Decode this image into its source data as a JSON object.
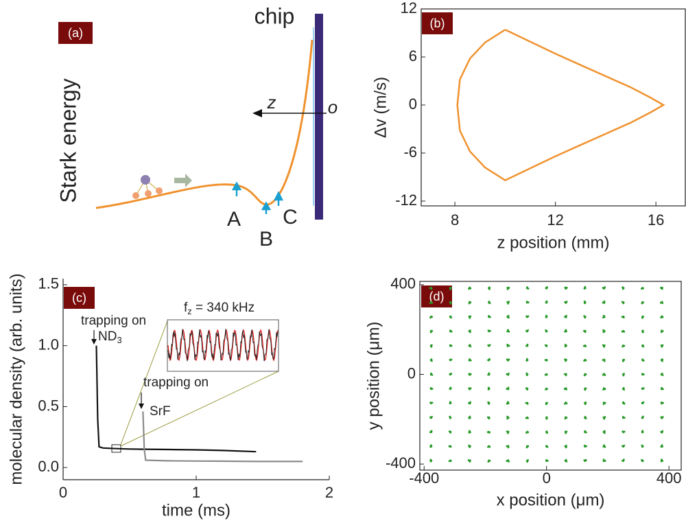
{
  "panel_a": {
    "label": "(a)",
    "chip": "chip",
    "y_label": "Stark energy",
    "axis": "z",
    "origin": "o",
    "points": [
      "A",
      "B",
      "C"
    ]
  },
  "chart_data": [
    {
      "type": "line",
      "label": "(b)",
      "x_label": "z position (mm)",
      "y_label": "Δv (m/s)",
      "xlim": [
        6.66,
        17.17
      ],
      "ylim": [
        -12.6,
        12
      ],
      "xticks": [
        8,
        12,
        16
      ],
      "yticks": [
        -12,
        -6,
        0,
        6,
        12
      ],
      "x": [
        10,
        11,
        12,
        13,
        14,
        15,
        15.8,
        16.3,
        15.8,
        15,
        14,
        13,
        12,
        11,
        10,
        9.2,
        8.6,
        8.2,
        8.1,
        8.2,
        8.6,
        9.2,
        10
      ],
      "series": [
        {
          "color": "#f0922e",
          "values": [
            9.4,
            7.9,
            6.4,
            5.0,
            3.6,
            2.2,
            0.9,
            0,
            -0.9,
            -2.2,
            -3.6,
            -5.0,
            -6.4,
            -7.9,
            -9.4,
            -7.8,
            -5.8,
            -3.2,
            0,
            3.2,
            5.8,
            7.8,
            9.4
          ]
        }
      ]
    },
    {
      "type": "line",
      "label": "(c)",
      "x_label": "time (ms)",
      "y_label": "molecular density (arb. units)",
      "xlim": [
        0,
        2
      ],
      "ylim": [
        -0.1,
        1.55
      ],
      "xticks": [
        0,
        1,
        2
      ],
      "yticks": [
        {
          "value": 0,
          "label": "0.0"
        },
        {
          "value": 0.5,
          "label": "0.5"
        },
        {
          "value": 1,
          "label": "1.0"
        },
        {
          "value": 1.5,
          "label": "1.5"
        }
      ],
      "x": [
        0.25,
        0.26,
        0.27,
        0.3,
        0.4,
        0.5,
        0.6,
        0.61,
        0.62,
        0.8,
        1.0,
        1.2,
        1.45,
        1.6,
        1.8
      ],
      "series": [
        {
          "color": "#111111",
          "values": [
            1.0,
            0.4,
            0.17,
            0.16,
            0.155,
            0.152,
            0.15,
            0.15,
            0.15,
            0.148,
            0.145,
            0.14,
            0.13,
            null,
            null
          ]
        },
        {
          "color": "#8a8a8a",
          "values": [
            null,
            null,
            null,
            null,
            null,
            null,
            0.46,
            0.15,
            0.06,
            0.055,
            0.053,
            0.052,
            0.05,
            0.05,
            0.05
          ]
        }
      ],
      "annotations": [
        "trapping on",
        "trapping on",
        "SrF"
      ],
      "nd3": [
        "ND",
        "3"
      ],
      "inset_label": [
        "f",
        "z",
        " = 340 kHz"
      ]
    },
    {
      "type": "scatter",
      "label": "(d)",
      "x_label": "x position (μm)",
      "y_label": "y position (μm)",
      "xlim": [
        -414,
        440
      ],
      "ylim": [
        -427,
        415
      ],
      "xticks": [
        -400,
        0,
        400
      ],
      "yticks": [
        -400,
        0,
        400
      ],
      "color": "#2a9a2a",
      "x_positions": [
        -377,
        -314,
        -251,
        -188,
        -126,
        -63,
        0,
        63,
        126,
        188,
        251,
        314,
        377
      ],
      "y_positions": [
        -385,
        -321,
        -257,
        -193,
        -128,
        -64,
        0,
        64,
        128,
        193,
        257,
        321,
        385
      ]
    }
  ]
}
